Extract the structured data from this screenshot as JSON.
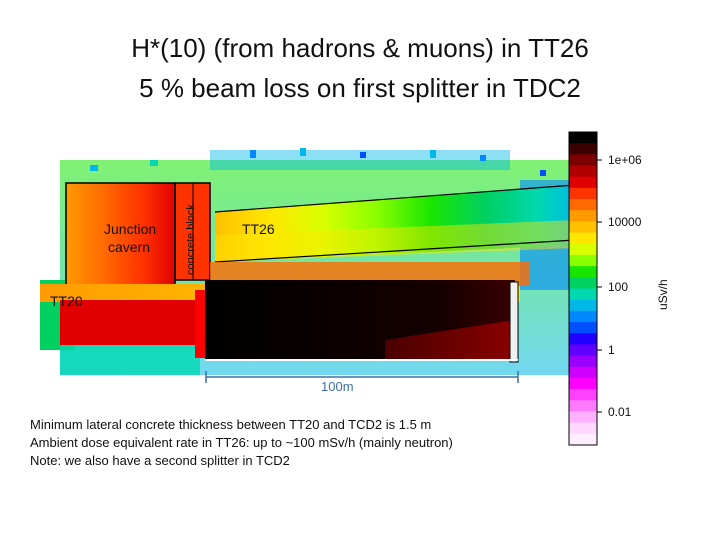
{
  "title": {
    "line1": "H*(10) (from hadrons & muons) in TT26",
    "line2": "5 % beam loss on first splitter in TDC2"
  },
  "labels": {
    "junction_line1": "Junction",
    "junction_line2": "cavern",
    "concrete_block": "concrete block",
    "tt26": "TT26",
    "tt20": "TT20",
    "scale_bar": "100m"
  },
  "colorbar": {
    "unit": "uSv/h",
    "ticks": [
      "1e+06",
      "10000",
      "100",
      "1",
      "0.01"
    ],
    "colors": [
      "#000000",
      "#3b0000",
      "#7a0000",
      "#b00000",
      "#e00000",
      "#ff3300",
      "#ff6a00",
      "#ff9a00",
      "#ffc000",
      "#ffe600",
      "#d8ff00",
      "#8aff00",
      "#19e600",
      "#00d060",
      "#00d8b0",
      "#00b8e8",
      "#0088ff",
      "#0050ff",
      "#2000ff",
      "#6000ff",
      "#9900ff",
      "#d000ff",
      "#ff00ff",
      "#ff40ff",
      "#ff7aff",
      "#ffb0ff",
      "#ffd8ff",
      "#ffeeff"
    ]
  },
  "notes": [
    "Minimum lateral concrete thickness between TT20 and TCD2 is 1.5 m",
    "Ambient dose equivalent rate in TT26: up to ~100 mSv/h (mainly neutron)",
    "Note: we also have a second splitter in TCD2"
  ]
}
